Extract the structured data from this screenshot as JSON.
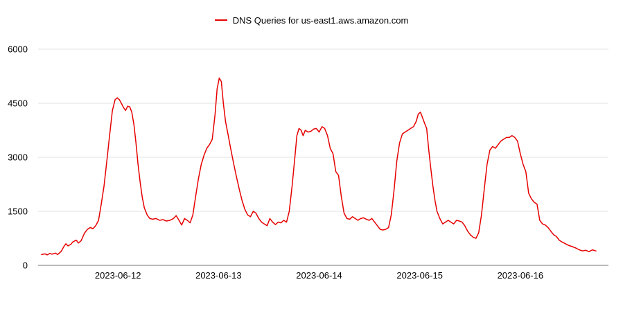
{
  "legend": {
    "label": "DNS Queries for us-east1.aws.amazon.com",
    "color": "#e60000"
  },
  "chart_data": {
    "type": "line",
    "title": "DNS Queries for us-east1.aws.amazon.com",
    "xlabel": "",
    "ylabel": "",
    "grid": "horizontal",
    "legend_position": "top-center",
    "colors": {
      "line": "#e60000",
      "grid": "#e0e0e0",
      "axis": "#757575",
      "text": "#000000",
      "background": "#ffffff"
    },
    "x_axis": {
      "unit": "days since 2023-06-11 00:00",
      "range": [
        0.241,
        5.752
      ],
      "tick_values": [
        1,
        2,
        3,
        4,
        5
      ],
      "tick_labels": [
        "2023-06-12",
        "2023-06-13",
        "2023-06-14",
        "2023-06-15",
        "2023-06-16"
      ]
    },
    "y_axis": {
      "range": [
        0,
        6000
      ],
      "tick_values": [
        0,
        1500,
        3000,
        4500,
        6000
      ],
      "tick_labels": [
        "0",
        "1500",
        "3000",
        "4500",
        "6000"
      ]
    },
    "series": [
      {
        "name": "DNS Queries for us-east1.aws.amazon.com",
        "color": "#e60000",
        "x": [
          0.241,
          0.276,
          0.297,
          0.324,
          0.345,
          0.379,
          0.4,
          0.434,
          0.462,
          0.483,
          0.503,
          0.531,
          0.552,
          0.586,
          0.607,
          0.634,
          0.669,
          0.697,
          0.724,
          0.752,
          0.779,
          0.807,
          0.834,
          0.862,
          0.89,
          0.917,
          0.945,
          0.972,
          0.993,
          1.014,
          1.034,
          1.055,
          1.076,
          1.097,
          1.117,
          1.138,
          1.159,
          1.179,
          1.2,
          1.221,
          1.241,
          1.262,
          1.29,
          1.317,
          1.345,
          1.379,
          1.414,
          1.448,
          1.483,
          1.517,
          1.552,
          1.579,
          1.607,
          1.634,
          1.662,
          1.69,
          1.717,
          1.745,
          1.772,
          1.8,
          1.828,
          1.855,
          1.883,
          1.91,
          1.938,
          1.966,
          1.986,
          2.007,
          2.028,
          2.048,
          2.069,
          2.097,
          2.124,
          2.152,
          2.179,
          2.207,
          2.234,
          2.262,
          2.29,
          2.317,
          2.345,
          2.372,
          2.4,
          2.428,
          2.455,
          2.483,
          2.51,
          2.538,
          2.566,
          2.593,
          2.621,
          2.648,
          2.676,
          2.703,
          2.731,
          2.759,
          2.779,
          2.8,
          2.821,
          2.841,
          2.862,
          2.89,
          2.917,
          2.945,
          2.972,
          3.0,
          3.028,
          3.055,
          3.083,
          3.11,
          3.138,
          3.166,
          3.193,
          3.221,
          3.248,
          3.276,
          3.303,
          3.331,
          3.359,
          3.386,
          3.414,
          3.441,
          3.469,
          3.497,
          3.524,
          3.552,
          3.579,
          3.607,
          3.634,
          3.662,
          3.69,
          3.717,
          3.745,
          3.772,
          3.8,
          3.828,
          3.855,
          3.883,
          3.91,
          3.938,
          3.966,
          3.986,
          4.007,
          4.028,
          4.048,
          4.069,
          4.09,
          4.11,
          4.131,
          4.152,
          4.172,
          4.2,
          4.228,
          4.255,
          4.283,
          4.31,
          4.338,
          4.366,
          4.393,
          4.421,
          4.448,
          4.476,
          4.503,
          4.531,
          4.559,
          4.586,
          4.614,
          4.641,
          4.669,
          4.697,
          4.724,
          4.752,
          4.779,
          4.807,
          4.834,
          4.862,
          4.89,
          4.917,
          4.945,
          4.972,
          5.0,
          5.028,
          5.055,
          5.083,
          5.11,
          5.138,
          5.166,
          5.193,
          5.221,
          5.248,
          5.276,
          5.303,
          5.331,
          5.359,
          5.386,
          5.414,
          5.448,
          5.483,
          5.517,
          5.552,
          5.586,
          5.621,
          5.648,
          5.683,
          5.717,
          5.752
        ],
        "y": [
          300,
          320,
          290,
          330,
          310,
          340,
          300,
          380,
          520,
          600,
          540,
          580,
          650,
          700,
          620,
          680,
          900,
          1000,
          1050,
          1020,
          1100,
          1250,
          1700,
          2200,
          2900,
          3600,
          4300,
          4600,
          4650,
          4600,
          4500,
          4380,
          4300,
          4420,
          4400,
          4250,
          3900,
          3400,
          2800,
          2300,
          1900,
          1600,
          1400,
          1300,
          1280,
          1300,
          1250,
          1270,
          1230,
          1250,
          1300,
          1380,
          1250,
          1120,
          1300,
          1250,
          1180,
          1400,
          1900,
          2400,
          2800,
          3050,
          3250,
          3350,
          3500,
          4200,
          4900,
          5200,
          5100,
          4500,
          4000,
          3600,
          3200,
          2800,
          2450,
          2100,
          1800,
          1550,
          1400,
          1350,
          1500,
          1450,
          1300,
          1200,
          1150,
          1100,
          1300,
          1200,
          1130,
          1200,
          1180,
          1250,
          1200,
          1500,
          2200,
          3000,
          3600,
          3800,
          3750,
          3600,
          3750,
          3700,
          3720,
          3780,
          3800,
          3700,
          3850,
          3800,
          3600,
          3250,
          3100,
          2600,
          2500,
          1900,
          1450,
          1300,
          1280,
          1350,
          1300,
          1250,
          1300,
          1320,
          1280,
          1250,
          1300,
          1200,
          1100,
          1000,
          980,
          1000,
          1050,
          1400,
          2100,
          2900,
          3400,
          3650,
          3700,
          3750,
          3800,
          3850,
          4000,
          4200,
          4250,
          4100,
          3950,
          3800,
          3200,
          2700,
          2200,
          1800,
          1500,
          1300,
          1150,
          1200,
          1250,
          1200,
          1150,
          1250,
          1230,
          1200,
          1100,
          950,
          850,
          780,
          750,
          900,
          1400,
          2100,
          2800,
          3200,
          3300,
          3250,
          3350,
          3450,
          3500,
          3550,
          3550,
          3600,
          3550,
          3450,
          3100,
          2800,
          2600,
          2000,
          1850,
          1750,
          1700,
          1250,
          1150,
          1120,
          1050,
          950,
          850,
          800,
          700,
          650,
          600,
          550,
          520,
          480,
          430,
          400,
          420,
          380,
          430,
          400
        ]
      }
    ]
  }
}
